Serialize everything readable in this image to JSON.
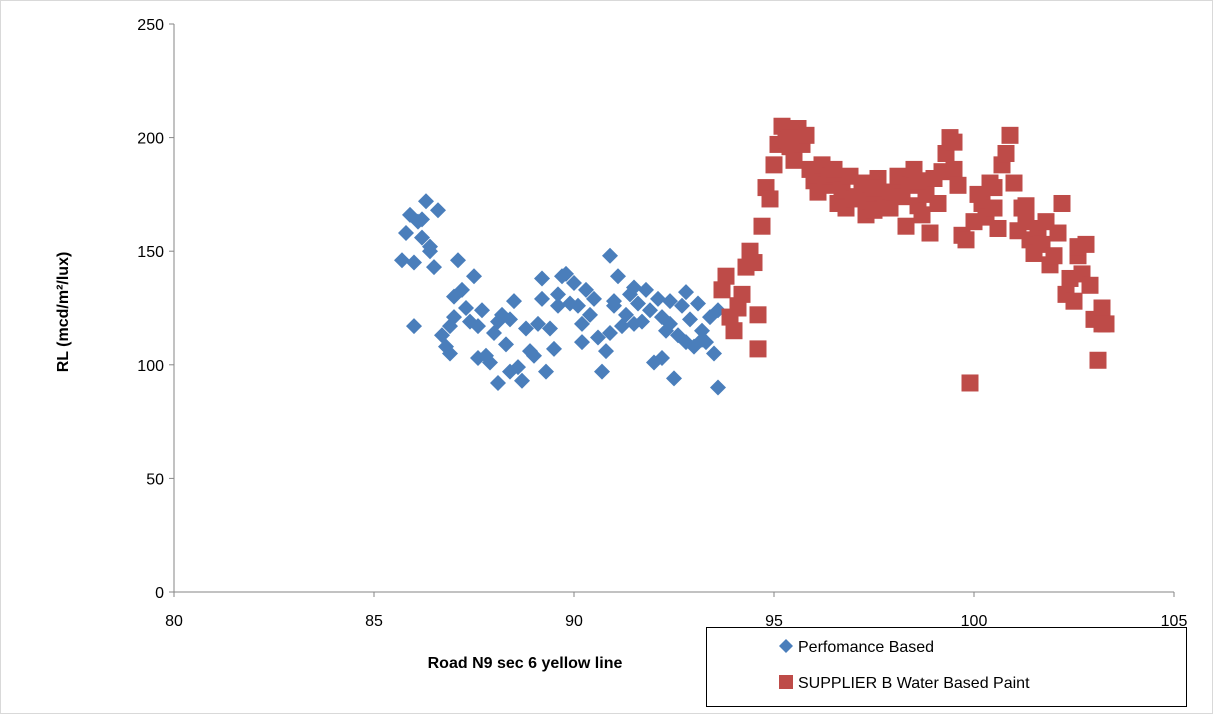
{
  "colors": {
    "series_1": "#4a7ebb",
    "series_2": "#be4b48",
    "axis": "#868686",
    "frame": "#d9d9d9"
  },
  "chart_data": {
    "type": "scatter",
    "title": "",
    "xlabel": "Road N9 sec 6 yellow line",
    "ylabel": "RL  (mcd/m²/lux)",
    "xlim": [
      80,
      105
    ],
    "ylim": [
      0,
      250
    ],
    "xticks": [
      "80",
      "85",
      "90",
      "95",
      "100",
      "105"
    ],
    "yticks": [
      "0",
      "50",
      "100",
      "150",
      "200",
      "250"
    ],
    "grid": false,
    "legend_position": "bottom-right",
    "series": [
      {
        "name": "Perfomance Based",
        "marker": "diamond",
        "color": "#4a7ebb",
        "points": [
          [
            85.7,
            146
          ],
          [
            85.8,
            158
          ],
          [
            85.9,
            166
          ],
          [
            86.0,
            145
          ],
          [
            86.0,
            117
          ],
          [
            86.1,
            163
          ],
          [
            86.2,
            156
          ],
          [
            86.3,
            172
          ],
          [
            86.4,
            150
          ],
          [
            86.5,
            143
          ],
          [
            86.6,
            168
          ],
          [
            86.7,
            113
          ],
          [
            86.8,
            108
          ],
          [
            86.9,
            117
          ],
          [
            87.0,
            130
          ],
          [
            87.1,
            146
          ],
          [
            87.2,
            133
          ],
          [
            87.3,
            125
          ],
          [
            87.4,
            119
          ],
          [
            87.5,
            139
          ],
          [
            87.6,
            117
          ],
          [
            87.7,
            124
          ],
          [
            87.8,
            104
          ],
          [
            87.9,
            101
          ],
          [
            88.0,
            114
          ],
          [
            88.1,
            119
          ],
          [
            88.2,
            122
          ],
          [
            88.3,
            109
          ],
          [
            88.4,
            120
          ],
          [
            88.5,
            128
          ],
          [
            88.6,
            99
          ],
          [
            88.7,
            93
          ],
          [
            88.8,
            116
          ],
          [
            88.9,
            106
          ],
          [
            89.0,
            104
          ],
          [
            89.1,
            118
          ],
          [
            89.2,
            129
          ],
          [
            89.3,
            97
          ],
          [
            89.4,
            116
          ],
          [
            89.5,
            107
          ],
          [
            89.6,
            131
          ],
          [
            89.7,
            139
          ],
          [
            89.8,
            140
          ],
          [
            89.9,
            127
          ],
          [
            90.0,
            136
          ],
          [
            90.1,
            126
          ],
          [
            90.2,
            118
          ],
          [
            90.3,
            133
          ],
          [
            90.4,
            122
          ],
          [
            90.5,
            129
          ],
          [
            90.6,
            112
          ],
          [
            90.7,
            97
          ],
          [
            90.8,
            106
          ],
          [
            90.9,
            148
          ],
          [
            91.0,
            128
          ],
          [
            91.1,
            139
          ],
          [
            91.2,
            117
          ],
          [
            91.3,
            122
          ],
          [
            91.4,
            131
          ],
          [
            91.5,
            118
          ],
          [
            91.6,
            127
          ],
          [
            91.7,
            119
          ],
          [
            91.8,
            133
          ],
          [
            91.9,
            124
          ],
          [
            92.0,
            101
          ],
          [
            92.1,
            129
          ],
          [
            92.2,
            121
          ],
          [
            92.3,
            115
          ],
          [
            92.4,
            128
          ],
          [
            92.5,
            94
          ],
          [
            92.6,
            113
          ],
          [
            92.7,
            126
          ],
          [
            92.8,
            132
          ],
          [
            92.9,
            120
          ],
          [
            93.0,
            108
          ],
          [
            93.1,
            127
          ],
          [
            93.2,
            115
          ],
          [
            93.3,
            110
          ],
          [
            93.4,
            121
          ],
          [
            93.5,
            105
          ],
          [
            93.6,
            90
          ],
          [
            86.4,
            152
          ],
          [
            86.9,
            105
          ],
          [
            87.6,
            103
          ],
          [
            88.4,
            97
          ],
          [
            89.2,
            138
          ],
          [
            90.2,
            110
          ],
          [
            90.9,
            114
          ],
          [
            91.5,
            134
          ],
          [
            92.2,
            103
          ],
          [
            92.8,
            110
          ],
          [
            93.2,
            111
          ],
          [
            86.2,
            164
          ],
          [
            87.0,
            121
          ],
          [
            88.1,
            92
          ],
          [
            89.6,
            126
          ],
          [
            91.0,
            126
          ],
          [
            92.4,
            118
          ],
          [
            93.6,
            124
          ]
        ]
      },
      {
        "name": "SUPPLIER B Water Based Paint",
        "marker": "square",
        "color": "#be4b48",
        "points": [
          [
            93.7,
            133
          ],
          [
            93.8,
            139
          ],
          [
            93.9,
            121
          ],
          [
            94.0,
            115
          ],
          [
            94.1,
            126
          ],
          [
            94.2,
            131
          ],
          [
            94.3,
            143
          ],
          [
            94.4,
            150
          ],
          [
            94.5,
            145
          ],
          [
            94.6,
            107
          ],
          [
            94.7,
            161
          ],
          [
            94.8,
            178
          ],
          [
            94.9,
            173
          ],
          [
            95.0,
            188
          ],
          [
            95.1,
            197
          ],
          [
            95.2,
            205
          ],
          [
            95.3,
            199
          ],
          [
            95.4,
            196
          ],
          [
            95.5,
            190
          ],
          [
            95.6,
            204
          ],
          [
            95.7,
            197
          ],
          [
            95.8,
            201
          ],
          [
            95.9,
            186
          ],
          [
            96.0,
            181
          ],
          [
            96.1,
            176
          ],
          [
            96.2,
            188
          ],
          [
            96.3,
            179
          ],
          [
            96.4,
            183
          ],
          [
            96.5,
            184
          ],
          [
            96.6,
            171
          ],
          [
            96.7,
            177
          ],
          [
            96.8,
            169
          ],
          [
            96.9,
            183
          ],
          [
            97.0,
            173
          ],
          [
            97.1,
            174
          ],
          [
            97.2,
            180
          ],
          [
            97.3,
            166
          ],
          [
            97.4,
            172
          ],
          [
            97.5,
            168
          ],
          [
            97.6,
            182
          ],
          [
            97.7,
            176
          ],
          [
            97.8,
            171
          ],
          [
            97.9,
            169
          ],
          [
            98.0,
            176
          ],
          [
            98.1,
            183
          ],
          [
            98.2,
            174
          ],
          [
            98.3,
            161
          ],
          [
            98.4,
            179
          ],
          [
            98.5,
            186
          ],
          [
            98.6,
            170
          ],
          [
            98.7,
            166
          ],
          [
            98.8,
            175
          ],
          [
            98.9,
            158
          ],
          [
            99.0,
            182
          ],
          [
            99.1,
            171
          ],
          [
            99.2,
            185
          ],
          [
            99.3,
            193
          ],
          [
            99.4,
            200
          ],
          [
            99.5,
            186
          ],
          [
            99.6,
            179
          ],
          [
            99.7,
            157
          ],
          [
            99.8,
            155
          ],
          [
            99.9,
            92
          ],
          [
            100.0,
            163
          ],
          [
            100.1,
            175
          ],
          [
            100.2,
            171
          ],
          [
            100.3,
            165
          ],
          [
            100.4,
            180
          ],
          [
            100.5,
            178
          ],
          [
            100.6,
            160
          ],
          [
            100.7,
            188
          ],
          [
            100.8,
            193
          ],
          [
            100.9,
            201
          ],
          [
            101.0,
            180
          ],
          [
            101.1,
            159
          ],
          [
            101.2,
            169
          ],
          [
            101.3,
            163
          ],
          [
            101.4,
            155
          ],
          [
            101.5,
            149
          ],
          [
            101.6,
            160
          ],
          [
            101.7,
            153
          ],
          [
            101.8,
            163
          ],
          [
            101.9,
            144
          ],
          [
            102.0,
            148
          ],
          [
            102.1,
            158
          ],
          [
            102.2,
            171
          ],
          [
            102.3,
            131
          ],
          [
            102.4,
            138
          ],
          [
            102.5,
            128
          ],
          [
            102.6,
            148
          ],
          [
            102.7,
            140
          ],
          [
            102.8,
            153
          ],
          [
            102.9,
            135
          ],
          [
            103.0,
            120
          ],
          [
            103.1,
            102
          ],
          [
            103.2,
            125
          ],
          [
            103.3,
            118
          ],
          [
            94.1,
            125
          ],
          [
            94.6,
            122
          ],
          [
            95.4,
            200
          ],
          [
            96.5,
            186
          ],
          [
            97.5,
            178
          ],
          [
            98.6,
            181
          ],
          [
            99.5,
            198
          ],
          [
            100.5,
            169
          ],
          [
            101.3,
            170
          ],
          [
            102.6,
            152
          ],
          [
            103.2,
            118
          ]
        ]
      }
    ]
  }
}
